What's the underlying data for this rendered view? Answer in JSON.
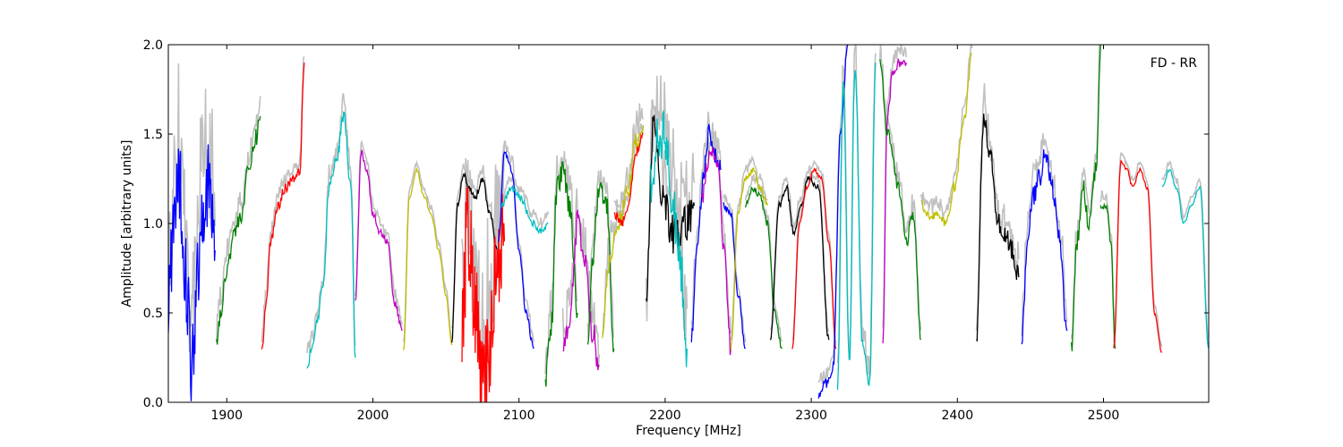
{
  "chart_data": {
    "type": "line",
    "annotation": "FD - RR",
    "xlabel": "Frequency [MHz]",
    "ylabel": "Amplitude [arbitrary units]",
    "xlim": [
      1860,
      2572
    ],
    "ylim": [
      0,
      2.0
    ],
    "x_ticks": [
      1900,
      2000,
      2100,
      2200,
      2300,
      2400,
      2500
    ],
    "x_tick_labels": [
      "1900",
      "2000",
      "2100",
      "2200",
      "2300",
      "2400",
      "2500"
    ],
    "y_ticks": [
      0.0,
      0.5,
      1.0,
      1.5,
      2.0
    ],
    "y_tick_labels": [
      "0.0",
      "0.5",
      "1.0",
      "1.5",
      "2.0"
    ],
    "grid": false,
    "legend": "none",
    "background_series_color": "#c0c0c0",
    "colors": {
      "blue": "#0000ff",
      "green": "#008000",
      "red": "#ff0000",
      "cyan": "#00bfbf",
      "magenta": "#bf00bf",
      "yellow": "#bfbf00",
      "black": "#000000"
    },
    "segments": [
      {
        "color": "#0000ff",
        "x": [
          1860,
          1864,
          1868,
          1872,
          1876,
          1880,
          1884,
          1888,
          1892
        ],
        "y": [
          0.55,
          1.05,
          1.2,
          0.7,
          0.2,
          0.75,
          1.15,
          1.2,
          0.85
        ],
        "noise": 0.25
      },
      {
        "color": "#008000",
        "x": [
          1893,
          1896,
          1900,
          1905,
          1910,
          1915,
          1920,
          1923
        ],
        "y": [
          0.35,
          0.5,
          0.75,
          0.95,
          1.05,
          1.3,
          1.48,
          1.6
        ],
        "noise": 0.05
      },
      {
        "color": "#ff0000",
        "x": [
          1924,
          1927,
          1930,
          1935,
          1940,
          1945,
          1950,
          1953
        ],
        "y": [
          0.3,
          0.55,
          0.9,
          1.1,
          1.2,
          1.25,
          1.3,
          1.9
        ],
        "noise": 0.03
      },
      {
        "color": "#00bfbf",
        "x": [
          1955,
          1958,
          1962,
          1966,
          1970,
          1975,
          1980,
          1985,
          1988
        ],
        "y": [
          0.2,
          0.3,
          0.45,
          0.65,
          1.2,
          1.35,
          1.6,
          1.2,
          0.25
        ],
        "noise": 0.04
      },
      {
        "color": "#bf00bf",
        "x": [
          1988,
          1992,
          1996,
          2000,
          2005,
          2010,
          2015,
          2020
        ],
        "y": [
          0.55,
          1.4,
          1.3,
          1.05,
          0.95,
          0.9,
          0.55,
          0.4
        ],
        "noise": 0.02
      },
      {
        "color": "#bfbf00",
        "x": [
          2021,
          2025,
          2030,
          2035,
          2040,
          2045,
          2050,
          2054
        ],
        "y": [
          0.3,
          1.15,
          1.3,
          1.15,
          1.05,
          0.85,
          0.6,
          0.32
        ],
        "noise": 0.01
      },
      {
        "color": "#000000",
        "x": [
          2054,
          2058,
          2062,
          2066,
          2070,
          2075,
          2080,
          2085
        ],
        "y": [
          0.35,
          1.1,
          1.27,
          1.2,
          1.15,
          1.25,
          1.05,
          0.85
        ],
        "noise": 0.02
      },
      {
        "color": "#ff0000",
        "x": [
          2061,
          2065,
          2070,
          2075,
          2080,
          2085,
          2090
        ],
        "y": [
          0.4,
          1.0,
          0.5,
          0.05,
          0.3,
          0.85,
          0.9
        ],
        "noise": 0.3
      },
      {
        "color": "#0000ff",
        "x": [
          2086,
          2090,
          2095,
          2100,
          2105,
          2110
        ],
        "y": [
          0.9,
          1.4,
          1.3,
          0.85,
          0.5,
          0.3
        ],
        "noise": 0.02
      },
      {
        "color": "#00bfbf",
        "x": [
          2088,
          2095,
          2100,
          2110,
          2115,
          2120
        ],
        "y": [
          1.1,
          1.2,
          1.15,
          1.0,
          0.95,
          1.0
        ],
        "noise": 0.02
      },
      {
        "color": "#008000",
        "x": [
          2118,
          2122,
          2126,
          2130,
          2135,
          2140
        ],
        "y": [
          0.15,
          0.4,
          1.2,
          1.3,
          1.1,
          0.5
        ],
        "noise": 0.08
      },
      {
        "color": "#bf00bf",
        "x": [
          2130,
          2135,
          2140,
          2145,
          2150,
          2155
        ],
        "y": [
          0.3,
          0.5,
          1.0,
          0.8,
          0.4,
          0.2
        ],
        "noise": 0.08
      },
      {
        "color": "#008000",
        "x": [
          2147,
          2150,
          2155,
          2160,
          2165
        ],
        "y": [
          0.3,
          0.8,
          1.2,
          1.1,
          0.3
        ],
        "noise": 0.06
      },
      {
        "color": "#bfbf00",
        "x": [
          2157,
          2160,
          2165,
          2170,
          2175,
          2180,
          2185
        ],
        "y": [
          0.3,
          0.7,
          0.9,
          1.05,
          1.2,
          1.45,
          1.55
        ],
        "noise": 0.06
      },
      {
        "color": "#ff0000",
        "x": [
          2165,
          2170,
          2175,
          2180,
          2185
        ],
        "y": [
          1.05,
          1.0,
          1.1,
          1.4,
          1.5
        ],
        "noise": 0.03
      },
      {
        "color": "#000000",
        "x": [
          2187,
          2192,
          2195,
          2200,
          2205,
          2210,
          2215,
          2220
        ],
        "y": [
          0.5,
          1.6,
          1.3,
          1.1,
          0.95,
          0.95,
          1.0,
          1.1
        ],
        "noise": 0.12
      },
      {
        "color": "#00bfbf",
        "x": [
          2190,
          2195,
          2200,
          2205,
          2210,
          2215
        ],
        "y": [
          1.2,
          1.5,
          1.5,
          1.1,
          0.8,
          0.3
        ],
        "noise": 0.15
      },
      {
        "color": "#0000ff",
        "x": [
          2218,
          2222,
          2226,
          2230,
          2234,
          2238
        ],
        "y": [
          0.35,
          0.9,
          1.25,
          1.5,
          1.4,
          1.3
        ],
        "noise": 0.06
      },
      {
        "color": "#bf00bf",
        "x": [
          2225,
          2228,
          2232,
          2236,
          2240,
          2245
        ],
        "y": [
          1.1,
          1.3,
          1.4,
          1.3,
          0.9,
          0.3
        ],
        "noise": 0.06
      },
      {
        "color": "#0000ff",
        "x": [
          2240,
          2245,
          2250,
          2255
        ],
        "y": [
          1.1,
          1.05,
          0.6,
          0.3
        ],
        "noise": 0.02
      },
      {
        "color": "#bfbf00",
        "x": [
          2245,
          2250,
          2255,
          2260,
          2265,
          2270
        ],
        "y": [
          0.3,
          1.05,
          1.25,
          1.3,
          1.2,
          1.1
        ],
        "noise": 0.02
      },
      {
        "color": "#008000",
        "x": [
          2255,
          2260,
          2265,
          2270,
          2275,
          2280
        ],
        "y": [
          1.1,
          1.2,
          1.15,
          1.0,
          0.5,
          0.3
        ],
        "noise": 0.02
      },
      {
        "color": "#000000",
        "x": [
          2272,
          2278,
          2283,
          2288,
          2293,
          2298,
          2305,
          2312
        ],
        "y": [
          0.35,
          1.1,
          1.2,
          0.95,
          1.1,
          1.25,
          1.2,
          0.35
        ],
        "noise": 0.02
      },
      {
        "color": "#ff0000",
        "x": [
          2287,
          2292,
          2297,
          2302,
          2307,
          2312,
          2317
        ],
        "y": [
          0.3,
          1.0,
          1.2,
          1.3,
          1.25,
          0.9,
          0.3
        ],
        "noise": 0.01
      },
      {
        "color": "#0000ff",
        "x": [
          2305,
          2310,
          2315,
          2320,
          2325
        ],
        "y": [
          0.05,
          0.1,
          0.2,
          1.5,
          2.0
        ],
        "noise": 0.03
      },
      {
        "color": "#00bfbf",
        "x": [
          2318,
          2322,
          2326,
          2330,
          2335,
          2340,
          2344
        ],
        "y": [
          0.1,
          1.8,
          0.2,
          1.9,
          0.3,
          0.1,
          1.9
        ],
        "noise": 0.05
      },
      {
        "color": "#bf00bf",
        "x": [
          2349,
          2352,
          2356,
          2360,
          2365
        ],
        "y": [
          0.35,
          1.6,
          1.85,
          1.9,
          1.9
        ],
        "noise": 0.03
      },
      {
        "color": "#008000",
        "x": [
          2347,
          2352,
          2360,
          2365,
          2370,
          2375
        ],
        "y": [
          1.9,
          1.5,
          1.2,
          0.9,
          1.05,
          0.35
        ],
        "noise": 0.04
      },
      {
        "color": "#bfbf00",
        "x": [
          2375,
          2380,
          2385,
          2392,
          2398,
          2405,
          2410
        ],
        "y": [
          1.1,
          1.05,
          1.05,
          1.0,
          1.2,
          1.6,
          1.95
        ],
        "noise": 0.03
      },
      {
        "color": "#000000",
        "x": [
          2413,
          2418,
          2423,
          2428,
          2435,
          2442
        ],
        "y": [
          0.35,
          1.6,
          1.35,
          1.0,
          0.9,
          0.7
        ],
        "noise": 0.06
      },
      {
        "color": "#0000ff",
        "x": [
          2444,
          2448,
          2452,
          2456,
          2460,
          2465,
          2470,
          2475
        ],
        "y": [
          0.35,
          0.9,
          1.15,
          1.25,
          1.4,
          1.2,
          0.9,
          0.4
        ],
        "noise": 0.06
      },
      {
        "color": "#008000",
        "x": [
          2478,
          2482,
          2486,
          2490,
          2495,
          2498
        ],
        "y": [
          0.3,
          0.9,
          1.2,
          1.0,
          1.3,
          2.0
        ],
        "noise": 0.05
      },
      {
        "color": "#008000",
        "x": [
          2498,
          2502,
          2505,
          2508
        ],
        "y": [
          1.1,
          1.1,
          0.9,
          0.3
        ],
        "noise": 0.02
      },
      {
        "color": "#ff0000",
        "x": [
          2507,
          2512,
          2516,
          2520,
          2525,
          2530,
          2535,
          2540
        ],
        "y": [
          0.3,
          1.35,
          1.3,
          1.2,
          1.3,
          1.2,
          0.5,
          0.28
        ],
        "noise": 0.01
      },
      {
        "color": "#00bfbf",
        "x": [
          2540,
          2545,
          2550,
          2555,
          2560,
          2566,
          2572
        ],
        "y": [
          1.2,
          1.3,
          1.2,
          1.0,
          1.1,
          1.2,
          0.3
        ],
        "noise": 0.01
      }
    ]
  }
}
